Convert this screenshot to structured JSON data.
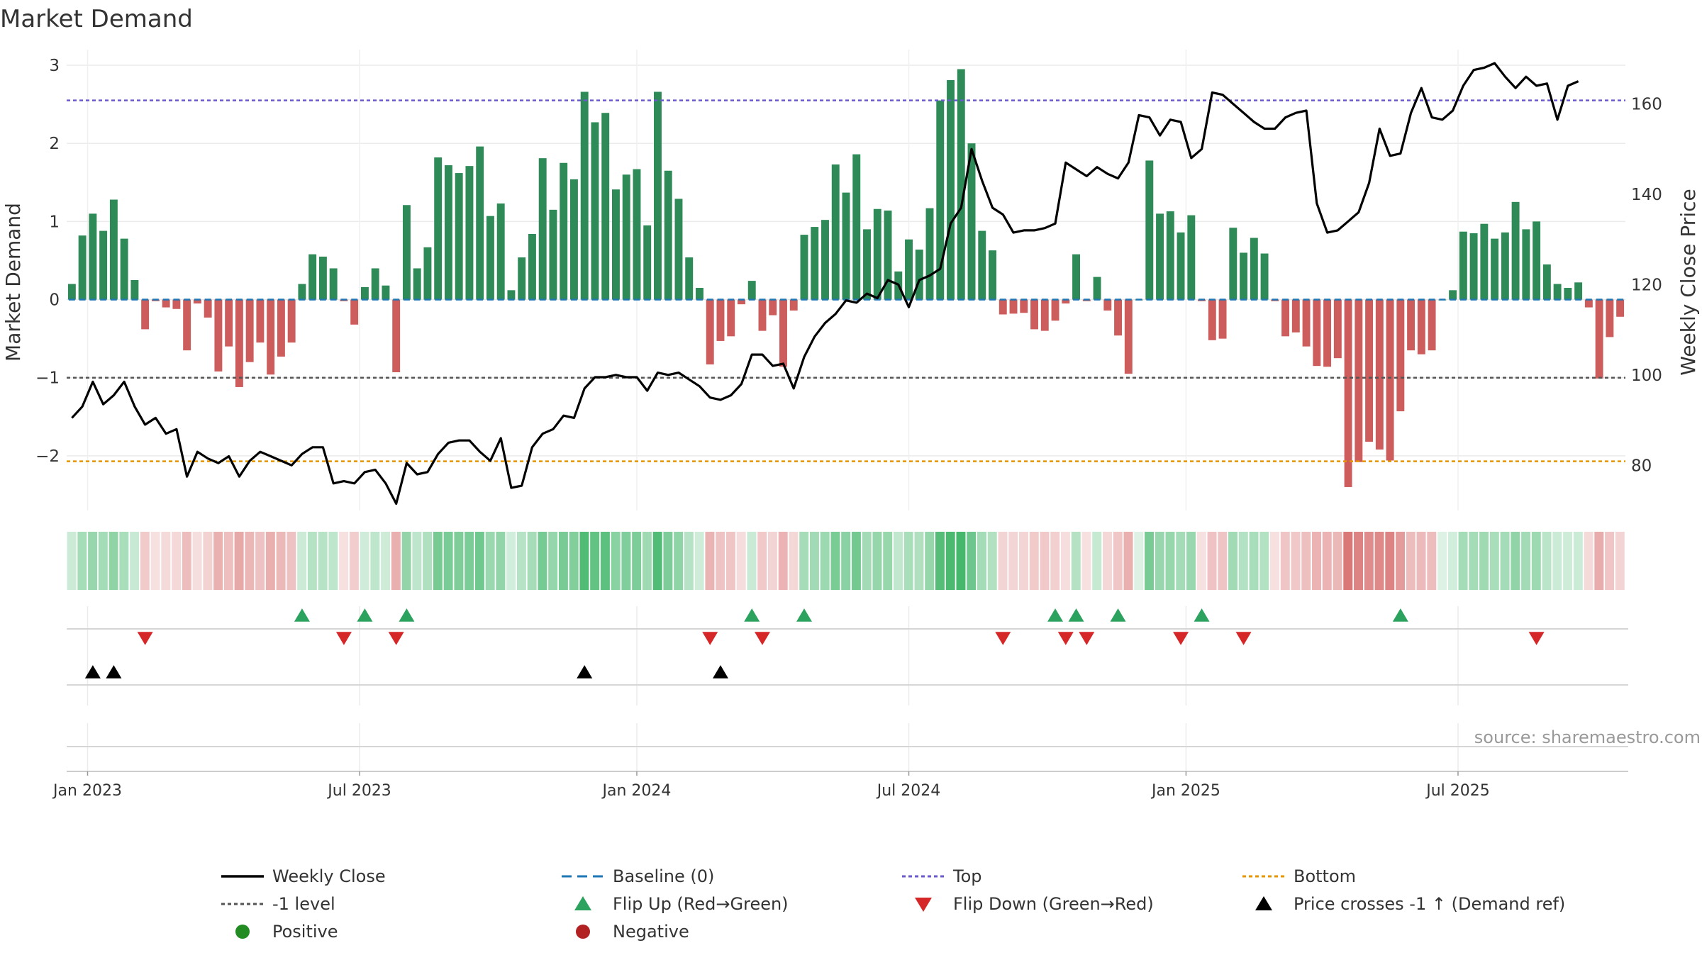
{
  "chart_data": {
    "type": "bar",
    "title": "Market Demand",
    "ylabel": "Market Demand",
    "y2label": "Weekly Close Price",
    "ylim": [
      -2.7,
      3.2
    ],
    "y2lim": [
      70,
      172
    ],
    "y_ticks": [
      3,
      2,
      1,
      0,
      -1,
      -2
    ],
    "y_tick_labels": [
      "3",
      "2",
      "1",
      "0",
      "−1",
      "−2"
    ],
    "y2_ticks": [
      160,
      140,
      120,
      100,
      80
    ],
    "y2_tick_labels": [
      "160",
      "140",
      "120",
      "100",
      "80"
    ],
    "x_tick_labels": [
      "Jan 2023",
      "Jul 2023",
      "Jan 2024",
      "Jul 2024",
      "Jan 2025",
      "Jul 2025"
    ],
    "x_tick_index": [
      1.5,
      27.5,
      54,
      80,
      106.5,
      132.5
    ],
    "reference_lines": {
      "top": 2.55,
      "minus_one": -1,
      "bottom": -2.07,
      "baseline": 0
    },
    "demand": [
      0.2,
      0.82,
      1.1,
      0.88,
      1.28,
      0.78,
      0.25,
      -0.38,
      -0.02,
      -0.1,
      -0.12,
      -0.65,
      -0.05,
      -0.23,
      -0.92,
      -0.6,
      -1.12,
      -0.8,
      -0.55,
      -0.96,
      -0.73,
      -0.55,
      0.2,
      0.58,
      0.55,
      0.4,
      -0.02,
      -0.32,
      0.16,
      0.4,
      0.18,
      -0.93,
      1.21,
      0.4,
      0.67,
      1.82,
      1.72,
      1.62,
      1.71,
      1.96,
      1.07,
      1.23,
      0.12,
      0.54,
      0.84,
      1.81,
      1.15,
      1.75,
      1.54,
      2.66,
      2.27,
      2.39,
      1.41,
      1.6,
      1.67,
      0.95,
      2.66,
      1.65,
      1.29,
      0.54,
      0.15,
      -0.83,
      -0.53,
      -0.47,
      -0.06,
      0.24,
      -0.4,
      -0.2,
      -0.86,
      -0.14,
      0.83,
      0.93,
      1.02,
      1.73,
      1.37,
      1.86,
      0.9,
      1.16,
      1.14,
      0.36,
      0.77,
      0.64,
      1.17,
      2.55,
      2.81,
      2.95,
      2.0,
      0.88,
      0.63,
      -0.19,
      -0.18,
      -0.17,
      -0.38,
      -0.4,
      -0.27,
      -0.05,
      0.58,
      -0.02,
      0.29,
      -0.14,
      -0.46,
      -0.95,
      0.0,
      1.78,
      1.1,
      1.13,
      0.86,
      1.08,
      -0.02,
      -0.52,
      -0.5,
      0.92,
      0.6,
      0.79,
      0.59,
      -0.02,
      -0.47,
      -0.42,
      -0.6,
      -0.85,
      -0.86,
      -0.75,
      -2.4,
      -2.08,
      -1.82,
      -1.92,
      -2.06,
      -1.43,
      -0.65,
      -0.7,
      -0.65,
      0.0,
      0.12,
      0.87,
      0.85,
      0.97,
      0.78,
      0.86,
      1.25,
      0.9,
      1.0,
      0.45,
      0.2,
      0.15,
      0.22,
      -0.1,
      -1.01,
      -0.48,
      -0.22
    ],
    "weekly_close": [
      90.5,
      93.0,
      98.5,
      93.5,
      95.5,
      98.5,
      93.0,
      89.0,
      90.5,
      87.0,
      88.0,
      77.5,
      83.0,
      81.5,
      80.5,
      82.0,
      77.5,
      81.0,
      83.0,
      82.0,
      81.0,
      80.0,
      82.5,
      84.0,
      84.0,
      76.0,
      76.5,
      76.0,
      78.5,
      79.0,
      76.0,
      71.5,
      80.5,
      78.0,
      78.5,
      82.5,
      85.0,
      85.5,
      85.5,
      83.0,
      81.0,
      86.0,
      75.0,
      75.5,
      84.0,
      87.0,
      88.0,
      91.0,
      90.5,
      97.0,
      99.5,
      99.5,
      100.0,
      99.5,
      99.5,
      96.5,
      100.5,
      100.0,
      100.5,
      99.0,
      97.5,
      95.0,
      94.5,
      95.5,
      98.0,
      104.5,
      104.5,
      102.0,
      102.5,
      97.0,
      104.0,
      108.5,
      111.5,
      113.5,
      116.5,
      116.0,
      118.0,
      117.0,
      121.0,
      120.0,
      115.0,
      121.0,
      122.0,
      123.5,
      133.5,
      137.0,
      150.0,
      143.0,
      137.0,
      135.5,
      131.5,
      132.0,
      132.0,
      132.5,
      133.5,
      147.0,
      145.5,
      144.0,
      146.0,
      144.5,
      143.5,
      147.0,
      157.5,
      157.0,
      153.0,
      156.5,
      156.0,
      148.0,
      150.0,
      162.5,
      162.0,
      160.0,
      158.0,
      156.0,
      154.5,
      154.5,
      157.0,
      158.0,
      158.5,
      138.0,
      131.5,
      132.0,
      134.0,
      136.0,
      142.5,
      154.5,
      148.5,
      149.0,
      158.0,
      163.5,
      157.0,
      156.5,
      158.5,
      164.0,
      167.5,
      168.0,
      169.0,
      166.0,
      163.5,
      166.0,
      164.0,
      164.5,
      156.5,
      164.0,
      165.0
    ],
    "flip_up_index": [
      22,
      28,
      32,
      65,
      70,
      94,
      96,
      100,
      108,
      127
    ],
    "flip_down_index": [
      7,
      26,
      31,
      61,
      66,
      89,
      95,
      97,
      106,
      112,
      140
    ],
    "price_cross_index": [
      2,
      4,
      49,
      62
    ],
    "colors": {
      "positive_bar": "#2e8b57",
      "negative_bar": "#cd5c5c",
      "weekly_close": "#000000",
      "baseline": "#1f77b4",
      "top": "#6a5acd",
      "bottom": "#e69500",
      "minus_one_level": "#555555",
      "flip_up": "#2ca25f",
      "flip_down": "#d62728",
      "price_cross": "#000000",
      "positive_dot": "#228b22",
      "negative_dot": "#b22222"
    },
    "legend": [
      {
        "label": "Weekly Close",
        "kind": "line"
      },
      {
        "label": "Baseline (0)",
        "kind": "dashed-blue"
      },
      {
        "label": "Top",
        "kind": "dotted-purple"
      },
      {
        "label": "Bottom",
        "kind": "dotted-orange"
      },
      {
        "label": "-1 level",
        "kind": "dotted-gray"
      },
      {
        "label": "Flip Up (Red→Green)",
        "kind": "tri-up-green"
      },
      {
        "label": "Flip Down (Green→Red)",
        "kind": "tri-down-red"
      },
      {
        "label": "Price crosses -1 ↑ (Demand ref)",
        "kind": "tri-up-black"
      },
      {
        "label": "Positive",
        "kind": "dot-green"
      },
      {
        "label": "Negative",
        "kind": "dot-red"
      }
    ],
    "legend_placement": "bottom",
    "source": "source: sharemaestro.com"
  }
}
